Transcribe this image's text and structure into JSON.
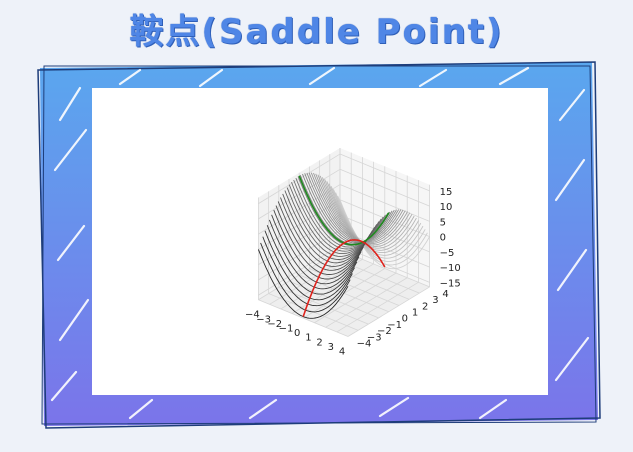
{
  "title": "鞍点(Saddle Point)",
  "colors": {
    "title": "#4f86e6",
    "frame_top": "#5aa7ee",
    "frame_bottom": "#7b74ea",
    "card": "#ffffff",
    "surface_line": "#000000",
    "green_curve": "#1f8a1f",
    "red_curve": "#e0231d"
  },
  "chart_data": {
    "type": "surface3d",
    "function": "z = x^2 - y^2",
    "x_ticks": [
      "−4",
      "−3",
      "−2",
      "−1",
      "0",
      "1",
      "2",
      "3",
      "4"
    ],
    "y_ticks": [
      "−4",
      "−3",
      "−2",
      "−1",
      "0",
      "1",
      "2",
      "3",
      "4"
    ],
    "z_ticks": [
      "15",
      "10",
      "5",
      "0",
      "−5",
      "−10",
      "−15"
    ],
    "x_range": [
      -4,
      4
    ],
    "y_range": [
      -4,
      4
    ],
    "z_range": [
      -15,
      15
    ],
    "grid": true
  }
}
